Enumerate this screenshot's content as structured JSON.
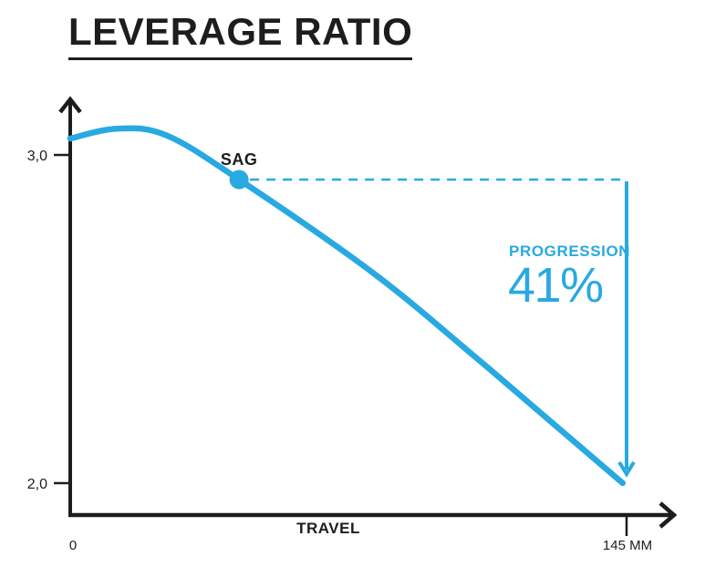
{
  "header": {
    "title": "LEVERAGE RATIO"
  },
  "colors": {
    "blue": "#29A9E1",
    "ink": "#1D1D1F"
  },
  "chart_data": {
    "type": "line",
    "title": "LEVERAGE RATIO",
    "xlabel": "TRAVEL",
    "ylabel": "",
    "x_unit": "MM",
    "xlim": [
      0,
      145
    ],
    "ylim": [
      2.0,
      3.0
    ],
    "grid": false,
    "x_tick_labels": {
      "origin": "0",
      "end": "145 MM"
    },
    "y_tick_labels": {
      "top": "3,0",
      "bottom": "2,0"
    },
    "series": [
      {
        "name": "leverage-ratio-curve",
        "color": "#29A9E1",
        "points_travel_mm_vs_ratio": [
          [
            0,
            3.05
          ],
          [
            12,
            3.08
          ],
          [
            25,
            3.06
          ],
          [
            44,
            2.925
          ],
          [
            79,
            2.64
          ],
          [
            105,
            2.39
          ],
          [
            124,
            2.2
          ],
          [
            144,
            2.0
          ]
        ]
      }
    ],
    "annotations": {
      "sag": {
        "label": "SAG",
        "travel_mm": 44,
        "ratio": 2.925
      },
      "progression": {
        "label": "PROGRESSION",
        "value": "41%"
      }
    }
  }
}
